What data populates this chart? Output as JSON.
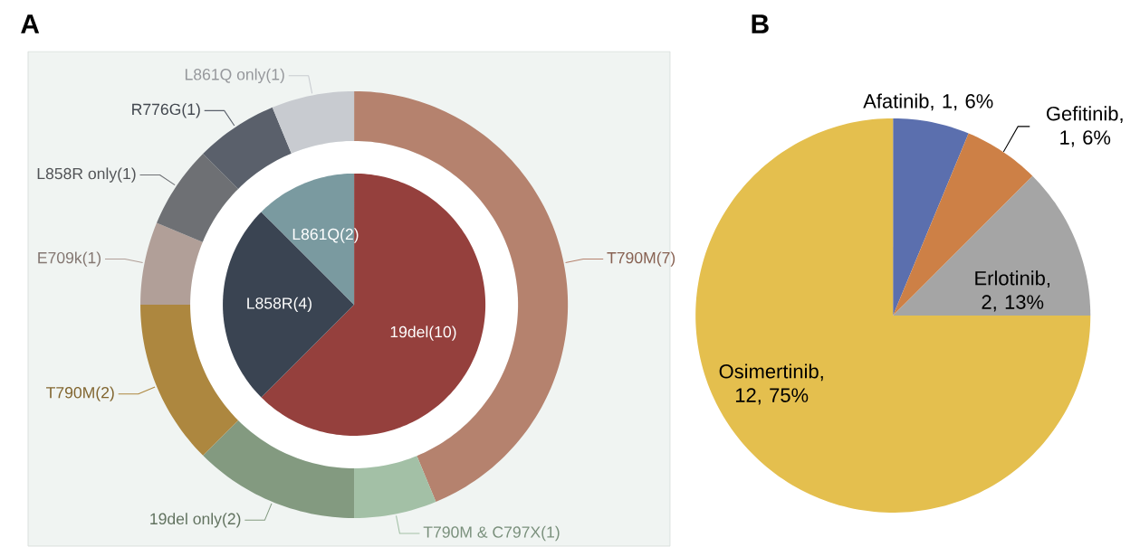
{
  "chart_data": [
    {
      "type": "pie",
      "title": "A",
      "categories": [
        "19del",
        "L858R",
        "L861Q"
      ],
      "values": [
        10,
        4,
        2
      ],
      "colors": [
        "#95403d",
        "#3a4452",
        "#7a9aa0"
      ],
      "value_labels": [
        "(10)",
        "(4)",
        "(2)"
      ]
    },
    {
      "type": "donut",
      "categories": [
        "T790M",
        "T790M & C797X",
        "19del only",
        "T790M",
        "E709k",
        "L858R only",
        "R776G",
        "L861Q only"
      ],
      "values": [
        7,
        1,
        2,
        2,
        1,
        1,
        1,
        1
      ],
      "colors": [
        "#b5826e",
        "#a3c0a6",
        "#839a80",
        "#ad873f",
        "#b19f98",
        "#6e7074",
        "#5a606b",
        "#c8cbd0"
      ],
      "value_labels": [
        "(7)",
        "(1)",
        "(2)",
        "(2)",
        "(1)",
        "(1)",
        "(1)",
        "(1)"
      ]
    },
    {
      "type": "pie",
      "title": "B",
      "categories": [
        "Afatinib",
        "Gefitinib",
        "Erlotinib",
        "Osimertinib"
      ],
      "values": [
        1,
        1,
        2,
        12
      ],
      "colors": [
        "#5b6fae",
        "#cd8046",
        "#a5a5a5",
        "#e4bf4e"
      ],
      "value_labels": [
        ", 1, 6%",
        ", 1, 6%",
        ", 2, 13%",
        ", 12, 75%"
      ]
    }
  ]
}
